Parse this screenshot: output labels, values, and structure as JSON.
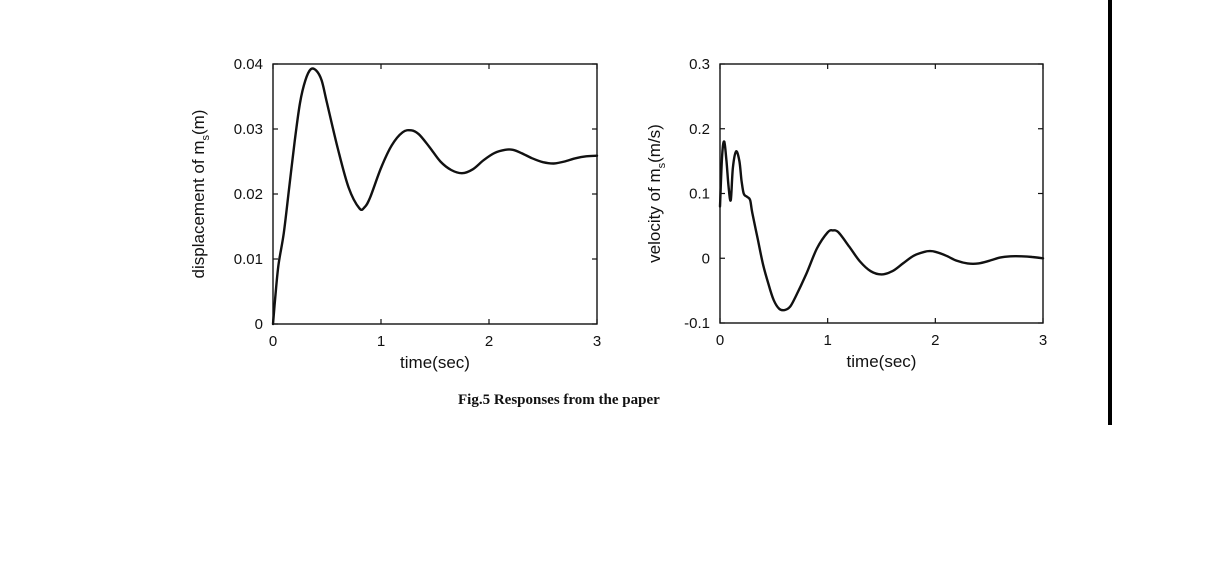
{
  "caption": "Fig.5 Responses from the paper",
  "chart_data": [
    {
      "type": "line",
      "xlabel": "time(sec)",
      "ylabel_prefix": "displacement of m",
      "ylabel_sub": "s",
      "ylabel_suffix": "(m)",
      "xlim": [
        0,
        3
      ],
      "ylim": [
        0,
        0.04
      ],
      "xticks": [
        0,
        1,
        2,
        3
      ],
      "xtick_labels": [
        "0",
        "1",
        "2",
        "3"
      ],
      "yticks": [
        0,
        0.01,
        0.02,
        0.03,
        0.04
      ],
      "ytick_labels": [
        "0",
        "0.01",
        "0.02",
        "0.03",
        "0.04"
      ],
      "grid": false,
      "series": [
        {
          "x": [
            0,
            0.02,
            0.05,
            0.1,
            0.15,
            0.2,
            0.25,
            0.3,
            0.35,
            0.4,
            0.45,
            0.5,
            0.6,
            0.7,
            0.8,
            0.85,
            0.9,
            1.0,
            1.1,
            1.2,
            1.28,
            1.35,
            1.45,
            1.55,
            1.65,
            1.75,
            1.85,
            1.95,
            2.05,
            2.15,
            2.22,
            2.3,
            2.4,
            2.5,
            2.6,
            2.7,
            2.8,
            2.9,
            3.0
          ],
          "y": [
            0,
            0.004,
            0.009,
            0.014,
            0.021,
            0.028,
            0.034,
            0.0375,
            0.0392,
            0.039,
            0.0375,
            0.034,
            0.027,
            0.021,
            0.0178,
            0.018,
            0.0195,
            0.024,
            0.0275,
            0.0295,
            0.0298,
            0.0292,
            0.0272,
            0.025,
            0.0237,
            0.0232,
            0.0238,
            0.0252,
            0.0263,
            0.0268,
            0.0268,
            0.0263,
            0.0255,
            0.0249,
            0.0247,
            0.025,
            0.0255,
            0.0258,
            0.0259
          ]
        }
      ]
    },
    {
      "type": "line",
      "xlabel": "time(sec)",
      "ylabel_prefix": "velocity of m",
      "ylabel_sub": "s",
      "ylabel_suffix": "(m/s)",
      "xlim": [
        0,
        3
      ],
      "ylim": [
        -0.1,
        0.3
      ],
      "xticks": [
        0,
        1,
        2,
        3
      ],
      "xtick_labels": [
        "0",
        "1",
        "2",
        "3"
      ],
      "yticks": [
        -0.1,
        0,
        0.1,
        0.2,
        0.3
      ],
      "ytick_labels": [
        "-0.1",
        "0",
        "0.1",
        "0.2",
        "0.3"
      ],
      "grid": false,
      "series": [
        {
          "x": [
            0,
            0.02,
            0.04,
            0.06,
            0.08,
            0.1,
            0.12,
            0.15,
            0.18,
            0.2,
            0.22,
            0.25,
            0.28,
            0.3,
            0.35,
            0.4,
            0.45,
            0.5,
            0.55,
            0.6,
            0.65,
            0.7,
            0.8,
            0.9,
            1.0,
            1.05,
            1.1,
            1.2,
            1.3,
            1.4,
            1.5,
            1.6,
            1.7,
            1.8,
            1.9,
            1.95,
            2.0,
            2.1,
            2.2,
            2.3,
            2.4,
            2.5,
            2.6,
            2.7,
            2.8,
            2.9,
            3.0
          ],
          "y": [
            0.08,
            0.16,
            0.18,
            0.15,
            0.11,
            0.09,
            0.14,
            0.165,
            0.15,
            0.12,
            0.1,
            0.095,
            0.09,
            0.07,
            0.03,
            -0.01,
            -0.04,
            -0.065,
            -0.078,
            -0.08,
            -0.075,
            -0.06,
            -0.025,
            0.015,
            0.04,
            0.043,
            0.04,
            0.018,
            -0.005,
            -0.02,
            -0.025,
            -0.02,
            -0.008,
            0.004,
            0.01,
            0.011,
            0.01,
            0.004,
            -0.004,
            -0.008,
            -0.008,
            -0.004,
            0.001,
            0.003,
            0.003,
            0.002,
            0.0
          ]
        }
      ]
    }
  ]
}
